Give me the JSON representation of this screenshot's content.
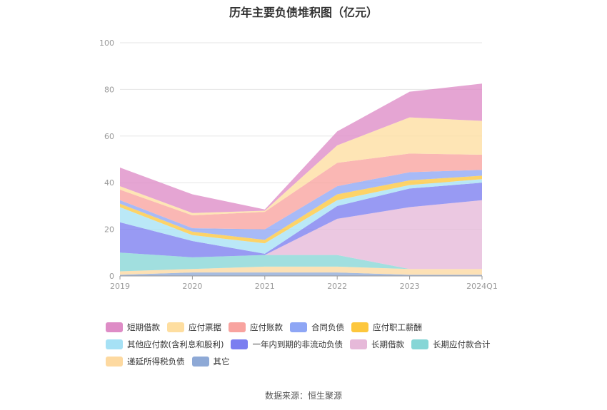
{
  "chart_data": {
    "type": "area",
    "stacked": true,
    "title": "历年主要负债堆积图（亿元）",
    "xlabel": "",
    "ylabel": "",
    "categories": [
      "2019",
      "2020",
      "2021",
      "2022",
      "2023",
      "2024Q1"
    ],
    "ylim": [
      0,
      100
    ],
    "yticks": [
      0,
      20,
      40,
      60,
      80,
      100
    ],
    "grid": true,
    "legend_position": "bottom",
    "series": [
      {
        "name": "其它",
        "color": "#8ea9d6",
        "values": [
          0.5,
          1.5,
          1.5,
          1.5,
          0.5,
          0.5
        ]
      },
      {
        "name": "递延所得税负债",
        "color": "#fdd9a0",
        "values": [
          1.5,
          1.5,
          2.5,
          2.5,
          2.5,
          2.5
        ]
      },
      {
        "name": "长期应付款合计",
        "color": "#86d6d6",
        "values": [
          8,
          5,
          5,
          5,
          0,
          0
        ]
      },
      {
        "name": "长期借款",
        "color": "#e6b9d9",
        "values": [
          0,
          0,
          0,
          15.5,
          26.5,
          29.5
        ]
      },
      {
        "name": "一年内到期的非流动负债",
        "color": "#7b7ef0",
        "values": [
          13,
          7,
          0.5,
          5.5,
          8,
          7.5
        ]
      },
      {
        "name": "其他应付款(含利息和股利)",
        "color": "#a6e1f5",
        "values": [
          6.5,
          2.5,
          4.5,
          2.5,
          1.5,
          1.5
        ]
      },
      {
        "name": "应付职工薪酬",
        "color": "#fdc73d",
        "values": [
          1.5,
          1.5,
          1.5,
          2.5,
          2,
          1.5
        ]
      },
      {
        "name": "合同负债",
        "color": "#8ea6f5",
        "values": [
          1.5,
          1.5,
          4.5,
          3.5,
          3.5,
          2.5
        ]
      },
      {
        "name": "应付账款",
        "color": "#f8a39f",
        "values": [
          4.5,
          5.5,
          7.5,
          10,
          8,
          6.5
        ]
      },
      {
        "name": "应付票据",
        "color": "#fedea0",
        "values": [
          1.5,
          1,
          0.5,
          7.5,
          15.5,
          14.5
        ]
      },
      {
        "name": "短期借款",
        "color": "#de8cc6",
        "values": [
          8,
          8,
          0.5,
          6,
          11,
          16
        ]
      }
    ]
  },
  "legend_order": [
    "短期借款",
    "应付票据",
    "应付账款",
    "合同负债",
    "应付职工薪酬",
    "其他应付款(含利息和股利)",
    "一年内到期的非流动负债",
    "长期借款",
    "长期应付款合计",
    "递延所得税负债",
    "其它"
  ],
  "source_text": "数据来源：恒生聚源"
}
